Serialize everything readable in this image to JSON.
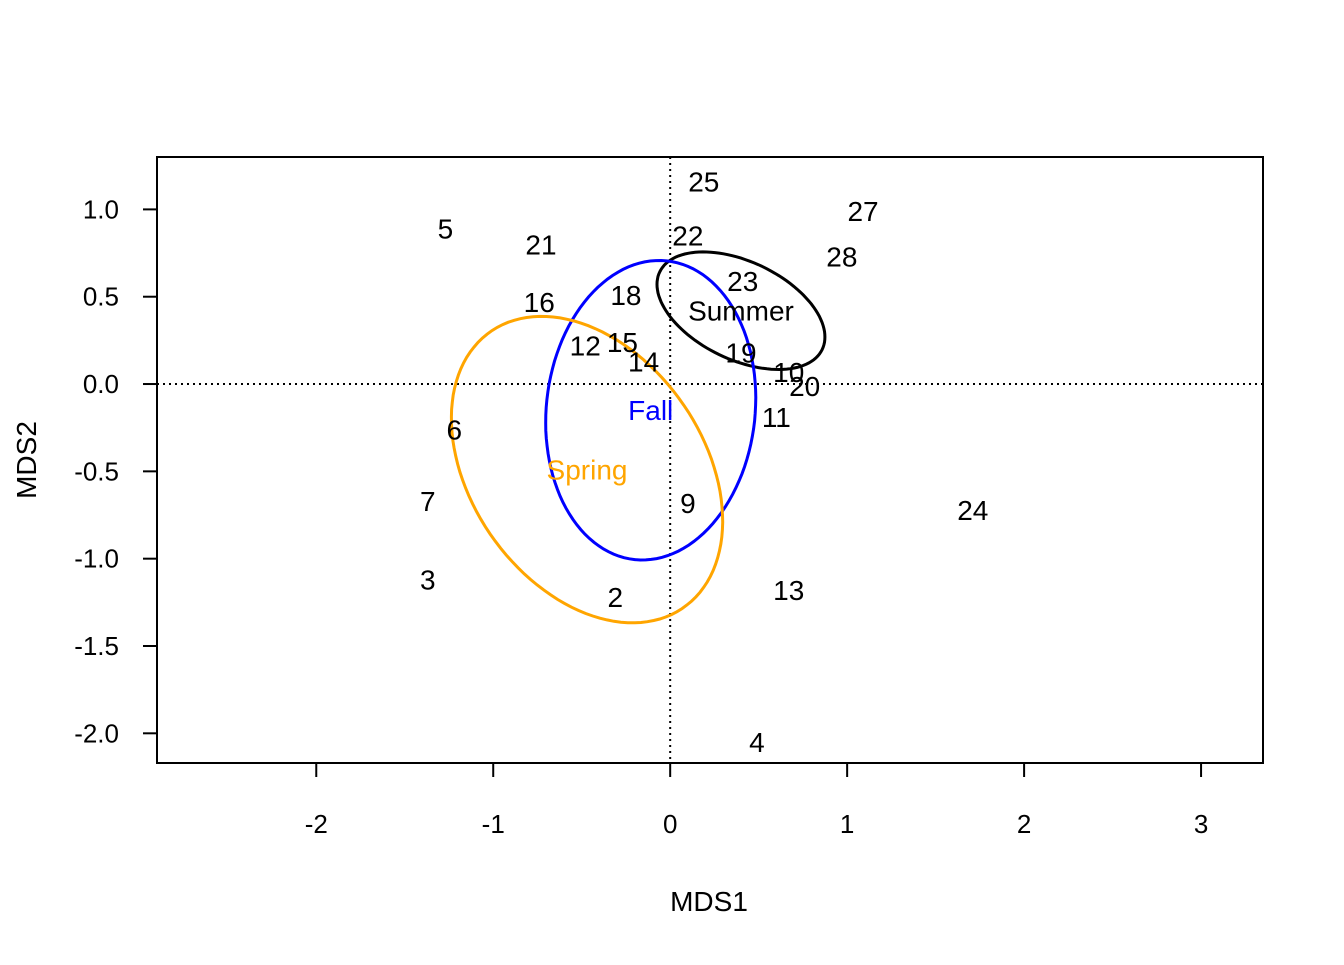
{
  "chart_data": {
    "type": "scatter",
    "title": "",
    "xlabel": "MDS1",
    "ylabel": "MDS2",
    "xlim": [
      -2.9,
      3.35
    ],
    "ylim": [
      -2.17,
      1.3
    ],
    "grid": false,
    "reference_lines": [
      {
        "axis": "x",
        "value": 0,
        "style": "dotted"
      },
      {
        "axis": "y",
        "value": 0,
        "style": "dotted"
      }
    ],
    "x_ticks": [
      -2,
      -1,
      0,
      1,
      2,
      3
    ],
    "x_tick_labels": [
      "-2",
      "-1",
      "0",
      "1",
      "2",
      "3"
    ],
    "y_ticks": [
      1.0,
      0.5,
      0.0,
      -0.5,
      -1.0,
      -1.5,
      -2.0
    ],
    "y_tick_labels": [
      "1.0",
      "0.5",
      "0.0",
      "-0.5",
      "-1.0",
      "-1.5",
      "-2.0"
    ],
    "points": [
      {
        "label": "25",
        "x": 0.19,
        "y": 1.16
      },
      {
        "label": "27",
        "x": 1.09,
        "y": 0.99
      },
      {
        "label": "5",
        "x": -1.27,
        "y": 0.89
      },
      {
        "label": "22",
        "x": 0.1,
        "y": 0.85
      },
      {
        "label": "21",
        "x": -0.73,
        "y": 0.8
      },
      {
        "label": "28",
        "x": 0.97,
        "y": 0.73
      },
      {
        "label": "23",
        "x": 0.41,
        "y": 0.59
      },
      {
        "label": "18",
        "x": -0.25,
        "y": 0.51
      },
      {
        "label": "16",
        "x": -0.74,
        "y": 0.47
      },
      {
        "label": "12",
        "x": -0.48,
        "y": 0.22
      },
      {
        "label": "15",
        "x": -0.27,
        "y": 0.24
      },
      {
        "label": "14",
        "x": -0.15,
        "y": 0.13
      },
      {
        "label": "19",
        "x": 0.4,
        "y": 0.18
      },
      {
        "label": "10",
        "x": 0.67,
        "y": 0.07
      },
      {
        "label": "20",
        "x": 0.76,
        "y": -0.01
      },
      {
        "label": "11",
        "x": 0.6,
        "y": -0.19
      },
      {
        "label": "6",
        "x": -1.22,
        "y": -0.26
      },
      {
        "label": "9",
        "x": 0.1,
        "y": -0.68
      },
      {
        "label": "24",
        "x": 1.71,
        "y": -0.72
      },
      {
        "label": "7",
        "x": -1.37,
        "y": -0.67
      },
      {
        "label": "3",
        "x": -1.37,
        "y": -1.12
      },
      {
        "label": "13",
        "x": 0.67,
        "y": -1.18
      },
      {
        "label": "2",
        "x": -0.31,
        "y": -1.22
      },
      {
        "label": "4",
        "x": 0.49,
        "y": -2.05
      }
    ],
    "groups": [
      {
        "name": "Summer",
        "color": "#000000",
        "center": [
          0.4,
          0.42
        ],
        "rx": 0.51,
        "ry": 0.28,
        "angle_deg": -26
      },
      {
        "name": "Fall",
        "color": "#0000ff",
        "center": [
          -0.11,
          -0.15
        ],
        "rx": 0.59,
        "ry": 0.86,
        "angle_deg": -6
      },
      {
        "name": "Spring",
        "color": "#ffa500",
        "center": [
          -0.47,
          -0.49
        ],
        "rx": 0.66,
        "ry": 0.96,
        "angle_deg": 34
      }
    ]
  }
}
